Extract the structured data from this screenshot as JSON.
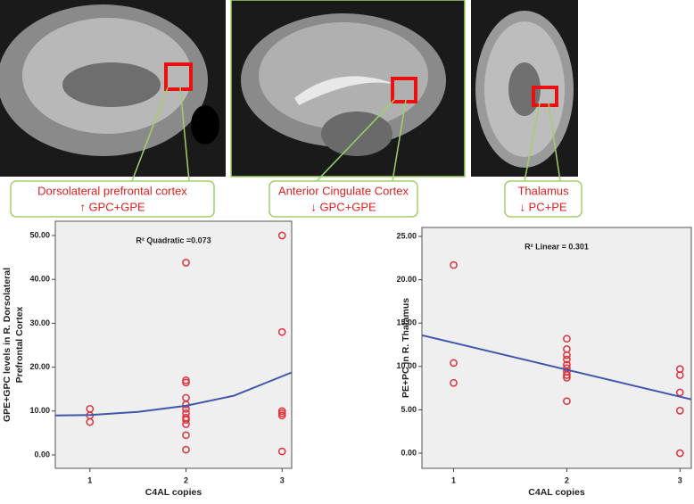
{
  "labels": [
    {
      "region": "Dorsolateral prefrontal cortex",
      "change": "↑ GPC+GPE"
    },
    {
      "region": "Anterior Cingulate Cortex",
      "change": "↓ GPC+GPE"
    },
    {
      "region": "Thalamus",
      "change": "↓ PC+PE"
    }
  ],
  "chart_data": [
    {
      "type": "scatter",
      "annotation": "R² Quadratic =0.073",
      "xlabel": "C4AL copies",
      "ylabel": [
        "GPE+GPC levels in R. Dorsolateral",
        "Prefrontal Cortex"
      ],
      "xlim": [
        0.64,
        3.1
      ],
      "ylim": [
        -3.05,
        53.25
      ],
      "xticks": [
        1,
        2,
        3
      ],
      "yticks": [
        {
          "value": 0,
          "label": "0.00"
        },
        {
          "value": 10,
          "label": "10.00"
        },
        {
          "value": 20,
          "label": "20.00"
        },
        {
          "value": 30,
          "label": "30.00"
        },
        {
          "value": 40,
          "label": "40.00"
        },
        {
          "value": 50,
          "label": "50.00"
        }
      ],
      "series": [
        {
          "type": "scatter",
          "color": "#e0323c",
          "x": [
            1,
            1,
            1,
            2,
            2,
            2,
            2,
            2,
            2,
            2,
            2,
            2,
            2,
            2,
            2,
            3,
            3,
            3,
            3,
            3,
            3
          ],
          "values": [
            10.5,
            9.0,
            7.5,
            43.8,
            17.0,
            16.5,
            13.0,
            11.5,
            10.5,
            9.5,
            8.5,
            8.0,
            7.0,
            4.5,
            1.2,
            50.0,
            28.0,
            10.0,
            9.5,
            9.0,
            0.8
          ]
        },
        {
          "type": "line",
          "color": "#3f56ad",
          "x": [
            0.64,
            1,
            1.5,
            2,
            2.5,
            3.1
          ],
          "values": [
            9.0,
            9.1,
            9.8,
            11.2,
            13.5,
            18.8
          ]
        }
      ]
    },
    {
      "type": "scatter",
      "annotation": "R² Linear = 0.301",
      "xlabel": "C4AL copies",
      "ylabel": [
        "PE+PC in R. Thalamus"
      ],
      "xlim": [
        0.72,
        3.1
      ],
      "ylim": [
        -1.75,
        26.03
      ],
      "xticks": [
        1,
        2,
        3
      ],
      "yticks": [
        {
          "value": 0,
          "label": "0.00"
        },
        {
          "value": 5,
          "label": "5.00"
        },
        {
          "value": 10,
          "label": "10.00"
        },
        {
          "value": 15,
          "label": "15.00"
        },
        {
          "value": 20,
          "label": "20.00"
        },
        {
          "value": 25,
          "label": "25.00"
        }
      ],
      "series": [
        {
          "type": "scatter",
          "color": "#e0323c",
          "x": [
            1,
            1,
            1,
            2,
            2,
            2,
            2,
            2,
            2,
            2,
            2,
            2,
            2,
            3,
            3,
            3,
            3,
            3
          ],
          "values": [
            21.7,
            10.4,
            8.1,
            13.2,
            12.0,
            11.3,
            10.8,
            10.2,
            9.8,
            9.4,
            9.0,
            8.7,
            6.0,
            9.7,
            9.0,
            7.0,
            4.9,
            0.0
          ]
        },
        {
          "type": "line",
          "color": "#3f56ad",
          "x": [
            0.72,
            3.1
          ],
          "values": [
            13.6,
            6.2
          ]
        }
      ]
    }
  ]
}
